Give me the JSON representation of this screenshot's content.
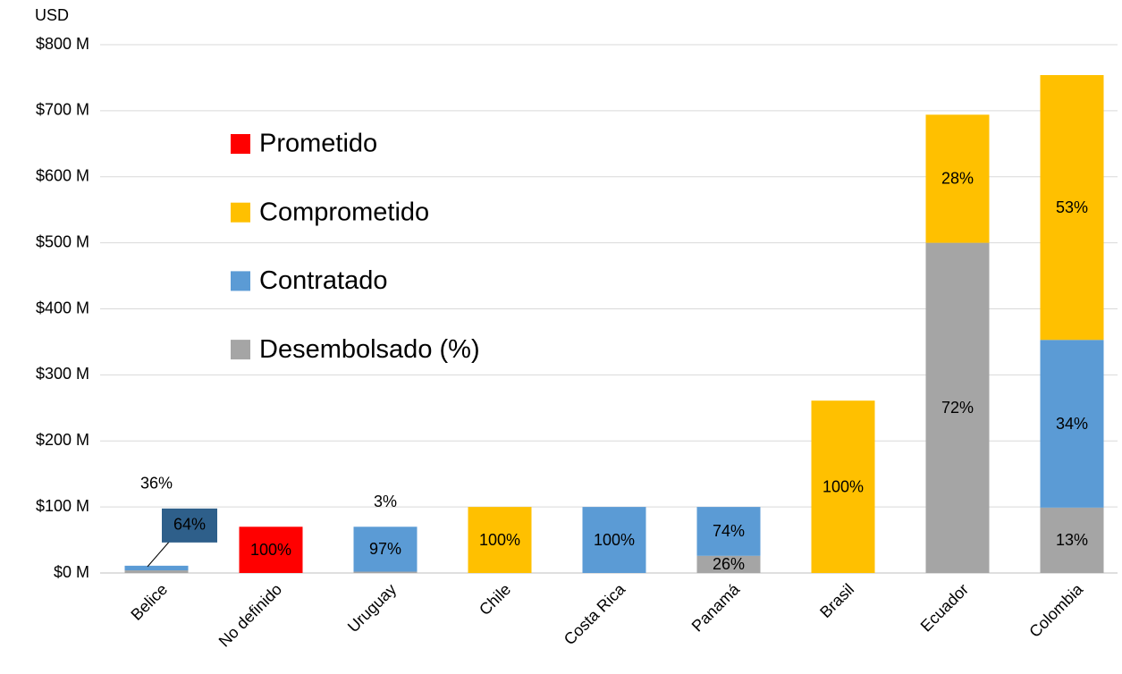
{
  "chart_data": {
    "type": "bar",
    "stacked": true,
    "y_label": "USD",
    "categories": [
      "Belice",
      "No definido",
      "Uruguay",
      "Chile",
      "Costa Rica",
      "Panamá",
      "Brasil",
      "Ecuador",
      "Colombia"
    ],
    "series": [
      {
        "name": "Prometido",
        "color": "#ff0000",
        "values": [
          null,
          70,
          null,
          null,
          null,
          null,
          null,
          null,
          null
        ],
        "value_labels": [
          null,
          "100%",
          null,
          null,
          null,
          null,
          null,
          null,
          null
        ]
      },
      {
        "name": "Comprometido",
        "color": "#ffc000",
        "values": [
          null,
          null,
          null,
          100,
          null,
          null,
          261,
          194,
          401
        ],
        "value_labels": [
          null,
          null,
          null,
          "100%",
          null,
          null,
          "100%",
          "28%",
          "53%"
        ]
      },
      {
        "name": "Contratado",
        "color": "#5b9bd5",
        "values": [
          7,
          null,
          68,
          null,
          100,
          74,
          null,
          null,
          254
        ],
        "value_labels": [
          "64%",
          null,
          "97%",
          null,
          "100%",
          "74%",
          null,
          null,
          "34%"
        ]
      },
      {
        "name": "Desembolsado (%)",
        "color": "#a5a5a5",
        "values": [
          4,
          null,
          2,
          null,
          null,
          26,
          null,
          500,
          99
        ],
        "value_labels": [
          "36%",
          null,
          "3%",
          null,
          null,
          "26%",
          null,
          "72%",
          "13%"
        ]
      }
    ],
    "ylim": [
      0,
      800
    ],
    "yticks": [
      {
        "value": 0,
        "label": "$0 M"
      },
      {
        "value": 100,
        "label": "$100 M"
      },
      {
        "value": 200,
        "label": "$200 M"
      },
      {
        "value": 300,
        "label": "$300 M"
      },
      {
        "value": 400,
        "label": "$400 M"
      },
      {
        "value": 500,
        "label": "$500 M"
      },
      {
        "value": 600,
        "label": "$600 M"
      },
      {
        "value": 700,
        "label": "$700 M"
      },
      {
        "value": 800,
        "label": "$800 M"
      }
    ],
    "grid": true,
    "legend": "upper left"
  }
}
